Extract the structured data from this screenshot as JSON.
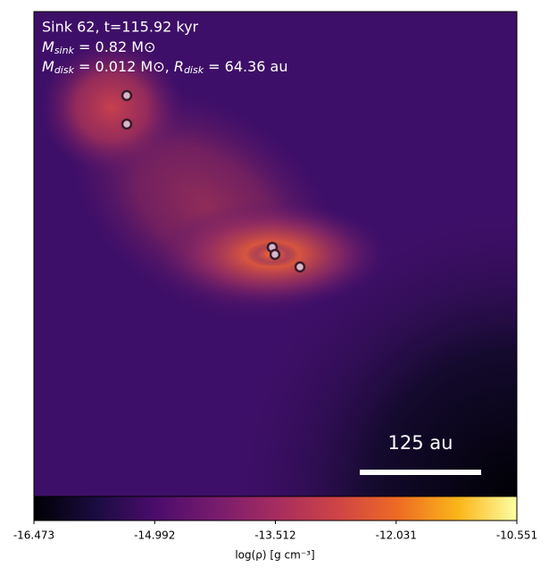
{
  "chart_data": {
    "type": "heatmap",
    "annotations": {
      "line1": "Sink 62, t=115.92 kyr",
      "line2": {
        "symbol": "M",
        "sub": "sink",
        "text": " = 0.82 M⊙"
      },
      "line3": {
        "symbol": "M",
        "sub": "disk",
        "text": " = 0.012 M⊙, ",
        "symbol2": "R",
        "sub2": "disk",
        "text2": " = 64.36 au"
      }
    },
    "scale_bar": "125 au",
    "colorbar": {
      "label": "log(ρ) [g cm⁻³]",
      "clim": [
        -16.473,
        -10.551
      ],
      "ticks": [
        -16.473,
        -14.992,
        -13.512,
        -12.031,
        -10.551
      ]
    }
  }
}
